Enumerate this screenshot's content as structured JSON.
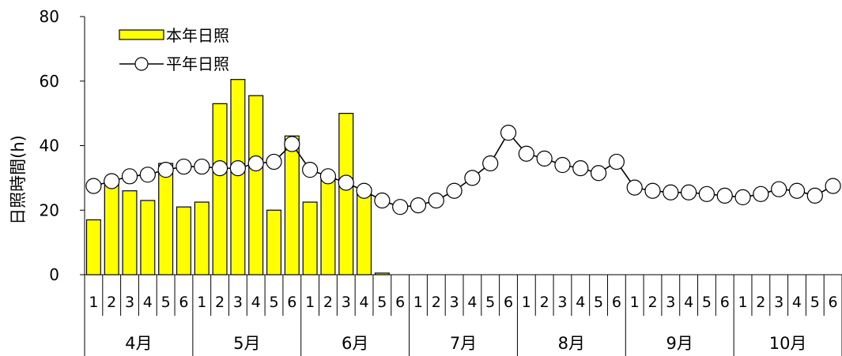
{
  "chart_data": {
    "type": "bar",
    "ylabel": "日照時間(h)",
    "ylim": [
      0,
      80
    ],
    "yticks": [
      0,
      20,
      40,
      60,
      80
    ],
    "grid": false,
    "legend_position": "top-left",
    "months": [
      "4月",
      "5月",
      "6月",
      "7月",
      "8月",
      "9月",
      "10月"
    ],
    "periods": [
      "1",
      "2",
      "3",
      "4",
      "5",
      "6"
    ],
    "series": [
      {
        "name": "本年日照",
        "kind": "bar",
        "color": "#FFFF00",
        "values": [
          17,
          28.5,
          26,
          23,
          34.5,
          21,
          22.5,
          53,
          60.5,
          55.5,
          20,
          43,
          22.5,
          29.5,
          50,
          27,
          0.5,
          null,
          null,
          null,
          null,
          null,
          null,
          null,
          null,
          null,
          null,
          null,
          null,
          null,
          null,
          null,
          null,
          null,
          null,
          null,
          null,
          null,
          null,
          null,
          null,
          null
        ]
      },
      {
        "name": "平年日照",
        "kind": "line",
        "color": "#000000",
        "values": [
          27.5,
          29,
          30.5,
          31,
          32.5,
          33.5,
          33.5,
          33,
          33,
          34.5,
          35,
          40.5,
          32.5,
          30.5,
          28.5,
          26,
          23,
          21,
          21.5,
          23,
          26,
          30,
          34.5,
          44,
          37.5,
          36,
          34,
          33,
          31.5,
          35,
          27,
          26,
          25.5,
          25.5,
          25,
          24.5,
          24,
          25,
          26.5,
          26,
          24.5,
          27.5
        ]
      }
    ]
  }
}
